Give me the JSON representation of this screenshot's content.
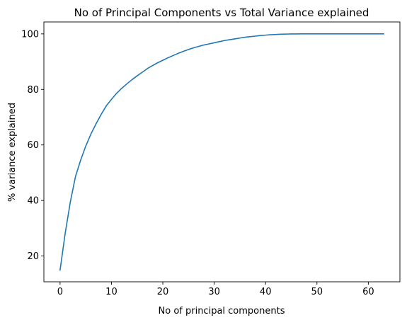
{
  "chart_data": {
    "type": "line",
    "title": "No of Principal Components vs Total Variance explained",
    "xlabel": "No of principal components",
    "ylabel": "% variance explained",
    "xlim": [
      -3.15,
      66.15
    ],
    "ylim": [
      10.7,
      104.3
    ],
    "xticks": [
      0,
      10,
      20,
      30,
      40,
      50,
      60
    ],
    "yticks": [
      20,
      40,
      60,
      80,
      100
    ],
    "grid": false,
    "line_color": "#1f77b4",
    "series": [
      {
        "x": [
          0,
          1,
          2,
          3,
          4,
          5,
          6,
          7,
          8,
          9,
          10,
          11,
          12,
          13,
          14,
          15,
          16,
          17,
          18,
          19,
          20,
          21,
          22,
          23,
          24,
          25,
          26,
          27,
          28,
          29,
          30,
          31,
          32,
          33,
          34,
          35,
          36,
          37,
          38,
          39,
          40,
          41,
          42,
          43,
          44,
          45,
          46,
          47,
          48,
          49,
          50,
          51,
          52,
          53,
          54,
          55,
          56,
          57,
          58,
          59,
          60,
          61,
          62,
          63
        ],
        "y": [
          14.9,
          28.2,
          39.5,
          48.6,
          54.5,
          59.6,
          63.9,
          67.6,
          71.0,
          74.1,
          76.4,
          78.6,
          80.4,
          82.0,
          83.5,
          84.9,
          86.2,
          87.5,
          88.6,
          89.6,
          90.5,
          91.4,
          92.2,
          93.0,
          93.7,
          94.4,
          95.0,
          95.5,
          96.0,
          96.4,
          96.8,
          97.2,
          97.6,
          97.9,
          98.2,
          98.5,
          98.8,
          99.0,
          99.2,
          99.4,
          99.55,
          99.7,
          99.8,
          99.88,
          99.93,
          99.97,
          99.99,
          100.0,
          100.0,
          100.0,
          100.0,
          100.0,
          100.0,
          100.0,
          100.0,
          100.0,
          100.0,
          100.0,
          100.0,
          100.0,
          100.0,
          100.0,
          100.0,
          100.0
        ]
      }
    ]
  }
}
